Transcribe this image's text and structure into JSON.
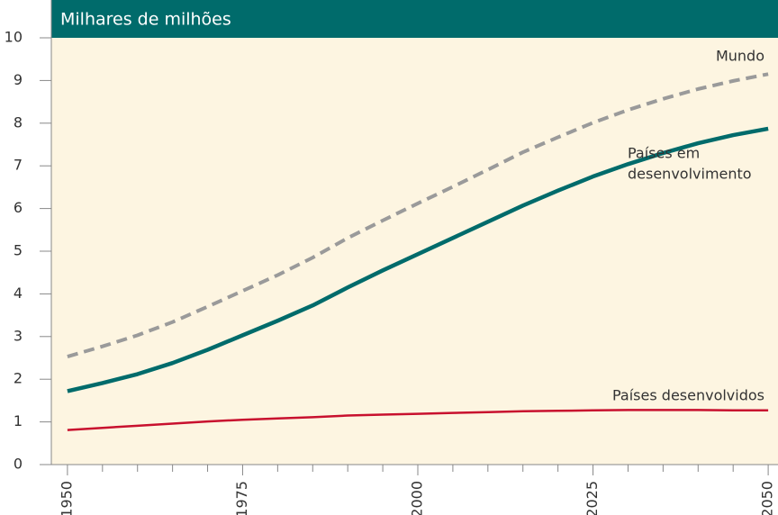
{
  "chart_data": {
    "type": "line",
    "title": "Milhares de milhões",
    "x": [
      1950,
      1955,
      1960,
      1965,
      1970,
      1975,
      1980,
      1985,
      1990,
      1995,
      2000,
      2005,
      2010,
      2015,
      2020,
      2025,
      2030,
      2035,
      2040,
      2045,
      2050
    ],
    "series": [
      {
        "label": [
          "Mundo"
        ],
        "color": "#9a9a9a",
        "dashed": true,
        "values": [
          2.53,
          2.77,
          3.03,
          3.34,
          3.7,
          4.07,
          4.44,
          4.85,
          5.31,
          5.72,
          6.12,
          6.51,
          6.91,
          7.32,
          7.67,
          8.01,
          8.31,
          8.57,
          8.8,
          8.99,
          9.15
        ]
      },
      {
        "label": [
          "Países em",
          "desenvolvimento"
        ],
        "color": "#006b6b",
        "dashed": false,
        "values": [
          1.72,
          1.91,
          2.12,
          2.38,
          2.69,
          3.03,
          3.37,
          3.73,
          4.15,
          4.55,
          4.93,
          5.31,
          5.69,
          6.07,
          6.42,
          6.75,
          7.04,
          7.3,
          7.53,
          7.72,
          7.87
        ]
      },
      {
        "label": [
          "Países desenvolvidos"
        ],
        "color": "#c8102e",
        "dashed": false,
        "values": [
          0.81,
          0.86,
          0.91,
          0.96,
          1.01,
          1.05,
          1.08,
          1.11,
          1.15,
          1.17,
          1.19,
          1.21,
          1.23,
          1.25,
          1.26,
          1.27,
          1.28,
          1.28,
          1.28,
          1.27,
          1.27
        ]
      }
    ],
    "xlim": [
      1947.7,
      2051.4
    ],
    "xticks": [
      1950,
      1975,
      2000,
      2025,
      2050
    ],
    "xminorticks": [
      1955,
      1960,
      1965,
      1970,
      1980,
      1985,
      1990,
      1995,
      2005,
      2010,
      2015,
      2020,
      2030,
      2035,
      2040,
      2045
    ],
    "ylim": [
      0,
      10
    ],
    "yticks": [
      0,
      1,
      2,
      3,
      4,
      5,
      6,
      7,
      8,
      9,
      10
    ]
  }
}
